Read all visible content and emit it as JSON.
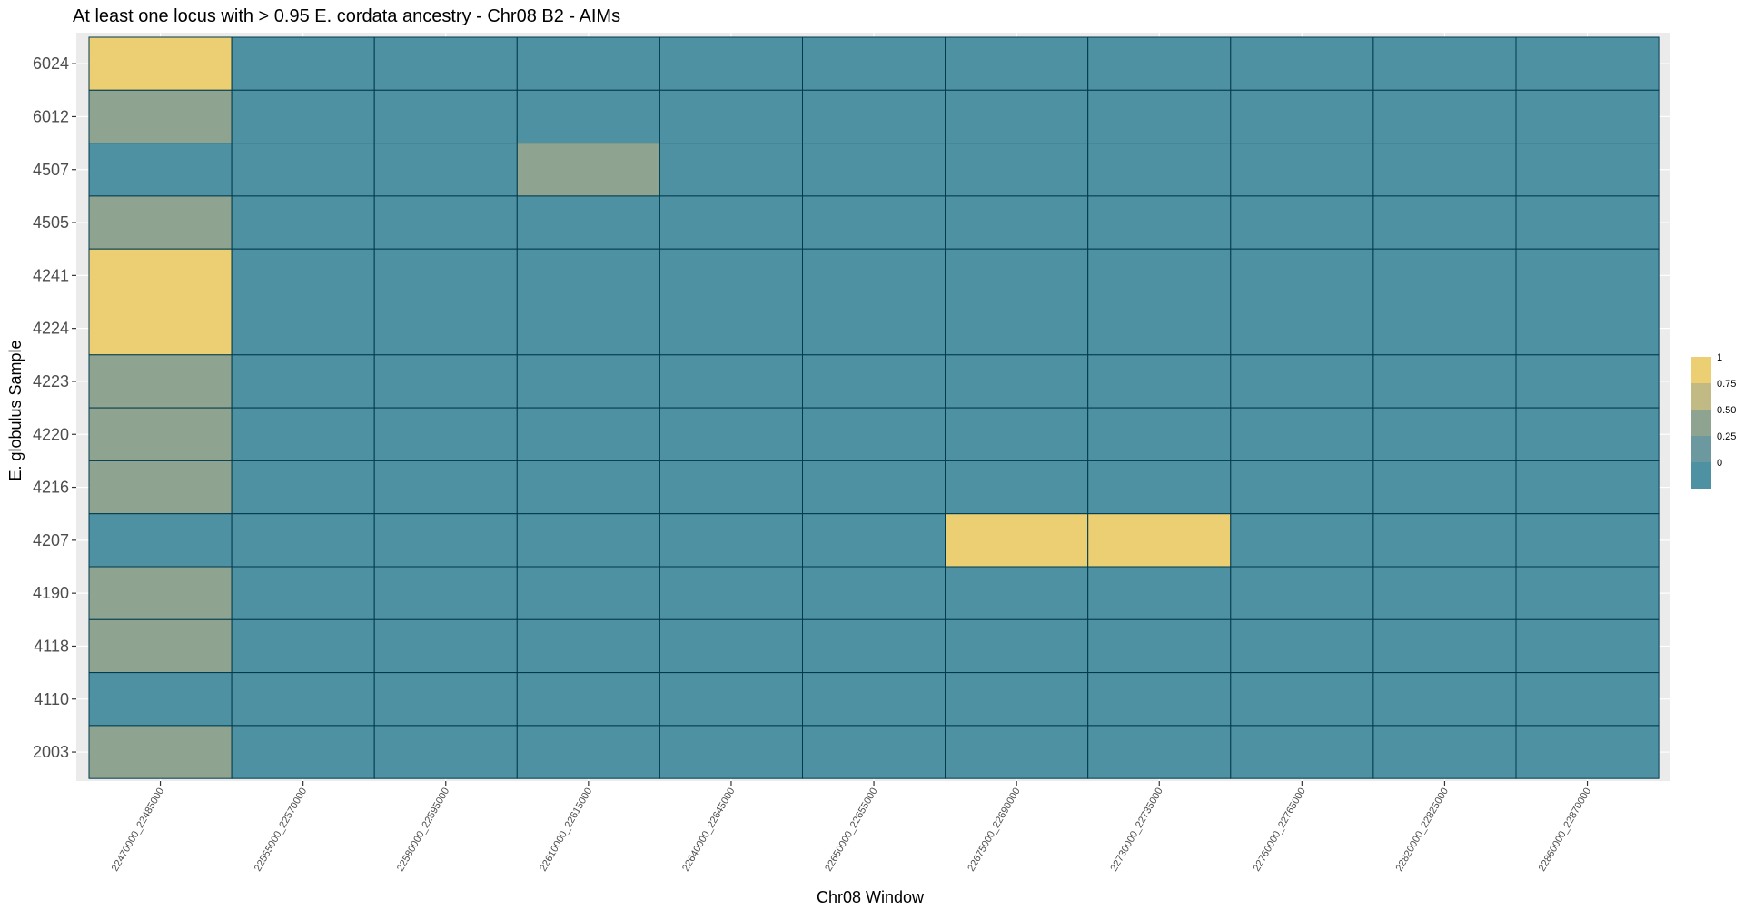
{
  "chart_data": {
    "type": "heatmap",
    "title": "At least one locus with > 0.95 E. cordata ancestry - Chr08 B2 - AIMs",
    "xlabel": "Chr08 Window",
    "ylabel": "E. globulus Sample",
    "x_categories": [
      "22470000_22485000",
      "22555000_22570000",
      "22580000_22595000",
      "22610000_22615000",
      "22640000_22645000",
      "22650000_22655000",
      "22675000_22690000",
      "22730000_22735000",
      "22760000_22765000",
      "22820000_22825000",
      "22860000_22870000"
    ],
    "y_categories": [
      "6024",
      "6012",
      "4507",
      "4505",
      "4241",
      "4224",
      "4223",
      "4220",
      "4216",
      "4207",
      "4190",
      "4118",
      "4110",
      "2003"
    ],
    "values": [
      [
        1,
        0,
        0,
        0,
        0,
        0,
        0,
        0,
        0,
        0,
        0
      ],
      [
        0.5,
        0,
        0,
        0,
        0,
        0,
        0,
        0,
        0,
        0,
        0
      ],
      [
        0,
        0,
        0,
        0.5,
        0,
        0,
        0,
        0,
        0,
        0,
        0
      ],
      [
        0.5,
        0,
        0,
        0,
        0,
        0,
        0,
        0,
        0,
        0,
        0
      ],
      [
        1,
        0,
        0,
        0,
        0,
        0,
        0,
        0,
        0,
        0,
        0
      ],
      [
        1,
        0,
        0,
        0,
        0,
        0,
        0,
        0,
        0,
        0,
        0
      ],
      [
        0.5,
        0,
        0,
        0,
        0,
        0,
        0,
        0,
        0,
        0,
        0
      ],
      [
        0.5,
        0,
        0,
        0,
        0,
        0,
        0,
        0,
        0,
        0,
        0
      ],
      [
        0.5,
        0,
        0,
        0,
        0,
        0,
        0,
        0,
        0,
        0,
        0
      ],
      [
        0,
        0,
        0,
        0,
        0,
        0,
        1,
        1,
        0,
        0,
        0
      ],
      [
        0.5,
        0,
        0,
        0,
        0,
        0,
        0,
        0,
        0,
        0,
        0
      ],
      [
        0.5,
        0,
        0,
        0,
        0,
        0,
        0,
        0,
        0,
        0,
        0
      ],
      [
        0,
        0,
        0,
        0,
        0,
        0,
        0,
        0,
        0,
        0,
        0
      ],
      [
        0.5,
        0,
        0,
        0,
        0,
        0,
        0,
        0,
        0,
        0,
        0
      ]
    ],
    "value_range": [
      0,
      1
    ],
    "colors": {
      "low": "#4e91a2",
      "mid": "#8ea490",
      "high": "#ecce73",
      "panel_background": "#ebebeb",
      "grid": "#ffffff",
      "tile_border": "#003a4d"
    },
    "legend": {
      "position": "right",
      "labels": [
        "1",
        "0.75",
        "0.50",
        "0.25",
        "0"
      ],
      "colors": [
        "#ecce73",
        "#c1ba84",
        "#8ea490",
        "#6c99a0",
        "#4e91a2"
      ]
    }
  }
}
